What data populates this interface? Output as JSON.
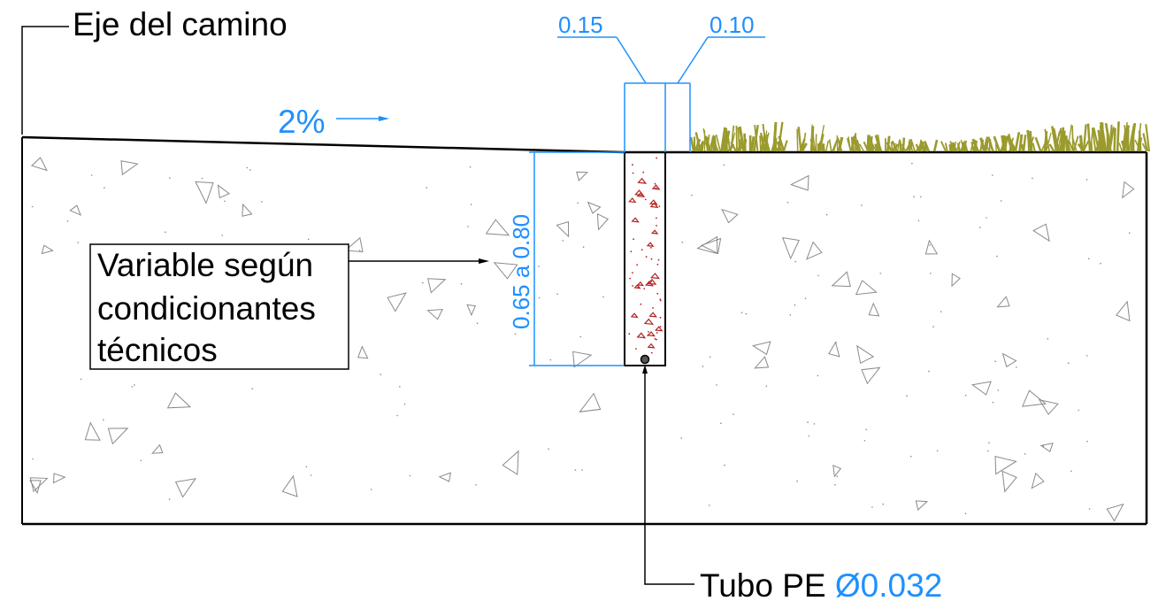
{
  "labels": {
    "road_axis": "Eje del camino",
    "slope": "2%",
    "width_left": "0.15",
    "width_right": "0.10",
    "depth": "0.65 a 0.80",
    "note_line1": "Variable según",
    "note_line2": "condicionantes",
    "note_line3": "técnicos",
    "pipe_label": "Tubo PE ",
    "pipe_diameter": "Ø0.032"
  },
  "colors": {
    "line": "#000000",
    "dimension": "#1e90ff",
    "grass": "#9a9a2e",
    "concrete_aggregate": "#b22222",
    "soil_hatch": "#8a8a8a"
  }
}
